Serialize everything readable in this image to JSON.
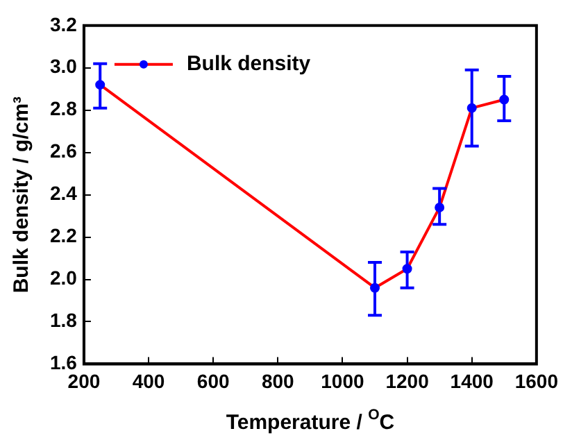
{
  "chart_data": {
    "type": "line",
    "xlabel": "Temperature / $^{O}$C",
    "ylabel": "Bulk density / g/cm³",
    "x": [
      250,
      1100,
      1200,
      1300,
      1400,
      1500
    ],
    "series": [
      {
        "name": "Bulk density",
        "color": "#ff0000",
        "values": [
          2.92,
          1.96,
          2.05,
          2.34,
          2.81,
          2.85
        ],
        "errors": [
          [
            2.81,
            3.02
          ],
          [
            1.83,
            2.08
          ],
          [
            1.96,
            2.13
          ],
          [
            2.26,
            2.43
          ],
          [
            2.63,
            2.99
          ],
          [
            2.75,
            2.96
          ]
        ]
      }
    ],
    "xlim": [
      200,
      1600
    ],
    "xticks": [
      200,
      400,
      600,
      800,
      1000,
      1200,
      1400,
      1600
    ],
    "ylim": [
      1.6,
      3.2
    ],
    "yticks": [
      1.6,
      1.8,
      {
        "value": 2,
        "label": "2.0"
      },
      2.2,
      2.4,
      2.6,
      2.8,
      {
        "value": 3,
        "label": "3.0"
      },
      3.2
    ],
    "grid": false,
    "legend": "top left",
    "marker": "circle",
    "line_style": "solid"
  }
}
